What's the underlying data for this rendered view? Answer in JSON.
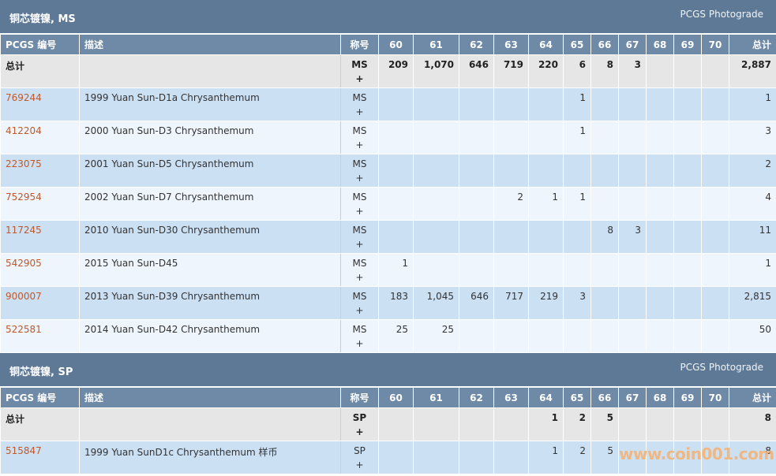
{
  "sections": [
    {
      "title": "铜芯镀镍, MS",
      "link": "PCGS Photograde",
      "headers": [
        "PCGS 编号",
        "描述",
        "称号",
        "60",
        "61",
        "62",
        "63",
        "64",
        "65",
        "66",
        "67",
        "68",
        "69",
        "70",
        "总计"
      ],
      "total": {
        "label": "总计",
        "desig": "MS",
        "plus": "+",
        "cells": [
          "209",
          "1,070",
          "646",
          "719",
          "220",
          "6",
          "8",
          "3",
          "",
          "",
          "",
          "2,887"
        ]
      },
      "rows": [
        {
          "pcgs": "769244",
          "desc": "1999 Yuan Sun-D1a Chrysanthemum",
          "desig": "MS",
          "plus": "+",
          "cells": [
            "",
            "",
            "",
            "",
            "",
            "1",
            "",
            "",
            "",
            "",
            "",
            "1"
          ]
        },
        {
          "pcgs": "412204",
          "desc": "2000 Yuan Sun-D3 Chrysanthemum",
          "desig": "MS",
          "plus": "+",
          "cells": [
            "",
            "",
            "",
            "",
            "",
            "1",
            "",
            "",
            "",
            "",
            "",
            "3"
          ]
        },
        {
          "pcgs": "223075",
          "desc": "2001 Yuan Sun-D5 Chrysanthemum",
          "desig": "MS",
          "plus": "+",
          "cells": [
            "",
            "",
            "",
            "",
            "",
            "",
            "",
            "",
            "",
            "",
            "",
            "2"
          ]
        },
        {
          "pcgs": "752954",
          "desc": "2002 Yuan Sun-D7 Chrysanthemum",
          "desig": "MS",
          "plus": "+",
          "cells": [
            "",
            "",
            "",
            "2",
            "1",
            "1",
            "",
            "",
            "",
            "",
            "",
            "4"
          ]
        },
        {
          "pcgs": "117245",
          "desc": "2010 Yuan Sun-D30 Chrysanthemum",
          "desig": "MS",
          "plus": "+",
          "cells": [
            "",
            "",
            "",
            "",
            "",
            "",
            "8",
            "3",
            "",
            "",
            "",
            "11"
          ]
        },
        {
          "pcgs": "542905",
          "desc": "2015 Yuan Sun-D45",
          "desig": "MS",
          "plus": "+",
          "cells": [
            "1",
            "",
            "",
            "",
            "",
            "",
            "",
            "",
            "",
            "",
            "",
            "1"
          ]
        },
        {
          "pcgs": "900007",
          "desc": "2013 Yuan Sun-D39 Chrysanthemum",
          "desig": "MS",
          "plus": "+",
          "cells": [
            "183",
            "1,045",
            "646",
            "717",
            "219",
            "3",
            "",
            "",
            "",
            "",
            "",
            "2,815"
          ]
        },
        {
          "pcgs": "522581",
          "desc": "2014 Yuan Sun-D42 Chrysanthemum",
          "desig": "MS",
          "plus": "+",
          "cells": [
            "25",
            "25",
            "",
            "",
            "",
            "",
            "",
            "",
            "",
            "",
            "",
            "50"
          ]
        }
      ]
    },
    {
      "title": "铜芯镀镍, SP",
      "link": "PCGS Photograde",
      "headers": [
        "PCGS 编号",
        "描述",
        "称号",
        "60",
        "61",
        "62",
        "63",
        "64",
        "65",
        "66",
        "67",
        "68",
        "69",
        "70",
        "总计"
      ],
      "total": {
        "label": "总计",
        "desig": "SP",
        "plus": "+",
        "cells": [
          "",
          "",
          "",
          "",
          "1",
          "2",
          "5",
          "",
          "",
          "",
          "",
          "8"
        ]
      },
      "rows": [
        {
          "pcgs": "515847",
          "desc": "1999 Yuan SunD1c Chrysanthemum 样币",
          "desig": "SP",
          "plus": "+",
          "cells": [
            "",
            "",
            "",
            "",
            "1",
            "2",
            "5",
            "",
            "",
            "",
            "",
            "8"
          ]
        }
      ]
    }
  ],
  "watermark": "www.coin001.com",
  "colors": {
    "header_bg": "#5d7996",
    "column_header_bg": "#6e8aa6",
    "total_row_bg": "#e6e6e6",
    "row_odd_bg": "#cce0f4",
    "row_even_bg": "#eef5fc",
    "link_color": "#c0582b"
  }
}
